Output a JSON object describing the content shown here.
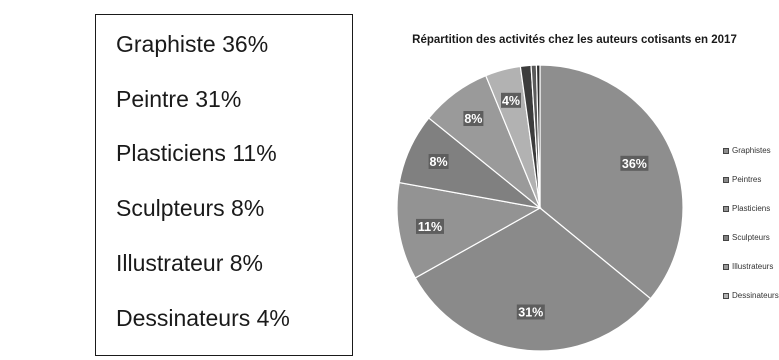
{
  "textbox": {
    "lines": [
      "Graphiste 36%",
      "Peintre 31%",
      "Plasticiens 11%",
      "Sculpteurs 8%",
      "Illustrateur 8%",
      "Dessinateurs 4%"
    ]
  },
  "chart_data": {
    "type": "pie",
    "title": "Répartition des activités chez les auteurs cotisants en 2017",
    "categories": [
      "Graphistes",
      "Peintres",
      "Plasticiens",
      "Sculpteurs",
      "Illustrateurs",
      "Dessinateurs",
      "",
      "",
      ""
    ],
    "values": [
      36,
      31,
      11,
      8,
      8,
      4,
      1.2,
      0.6,
      0.4
    ],
    "data_labels": [
      "36%",
      "31%",
      "11%",
      "8%",
      "8%",
      "4%",
      "",
      "",
      ""
    ],
    "colors": [
      "#8e8e8e",
      "#8a8a8a",
      "#939393",
      "#808080",
      "#9a9a9a",
      "#b2b2b2",
      "#3c3c3c",
      "#5a5a5a",
      "#2e2e2e"
    ],
    "legend": {
      "position": "right",
      "entries": [
        "Graphistes",
        "Peintres",
        "Plasticiens",
        "Sculpteurs",
        "Illustrateurs",
        "Dessinateurs"
      ]
    }
  }
}
